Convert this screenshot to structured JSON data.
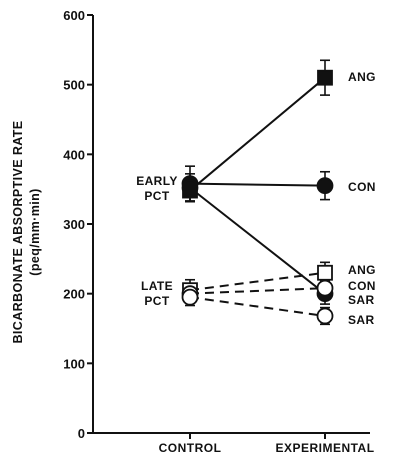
{
  "chart_data": {
    "type": "line",
    "xlabel": "",
    "ylabel": [
      "BICARBONATE ABSORPTIVE RATE",
      "(peq/mm·min)"
    ],
    "ylim": [
      0,
      600
    ],
    "yticks": [
      0,
      100,
      200,
      300,
      400,
      500,
      600
    ],
    "categories": [
      "CONTROL",
      "EXPERIMENTAL"
    ],
    "grid": false,
    "legend": "none",
    "groups": [
      {
        "name": "EARLY",
        "sub": "PCT",
        "series_indices": [
          0,
          1,
          2
        ]
      },
      {
        "name": "LATE",
        "sub": "PCT",
        "series_indices": [
          3,
          4,
          5
        ]
      }
    ],
    "series": [
      {
        "name": "ANG",
        "values": [
          348,
          510
        ],
        "errors": [
          15,
          25
        ],
        "marker": "filled-square",
        "dash": "solid"
      },
      {
        "name": "CON",
        "values": [
          358,
          355
        ],
        "errors": [
          25,
          20
        ],
        "marker": "filled-circle",
        "dash": "solid"
      },
      {
        "name": "SAR",
        "values": [
          352,
          200
        ],
        "errors": [
          20,
          15
        ],
        "marker": "filled-circle",
        "dash": "solid"
      },
      {
        "name": "ANG",
        "values": [
          205,
          230
        ],
        "errors": [
          15,
          15
        ],
        "marker": "open-square",
        "dash": "dashed"
      },
      {
        "name": "CON",
        "values": [
          200,
          208
        ],
        "errors": [
          12,
          10
        ],
        "marker": "open-circle",
        "dash": "dashed"
      },
      {
        "name": "SAR",
        "values": [
          195,
          168
        ],
        "errors": [
          12,
          12
        ],
        "marker": "open-circle",
        "dash": "dashed"
      }
    ]
  }
}
